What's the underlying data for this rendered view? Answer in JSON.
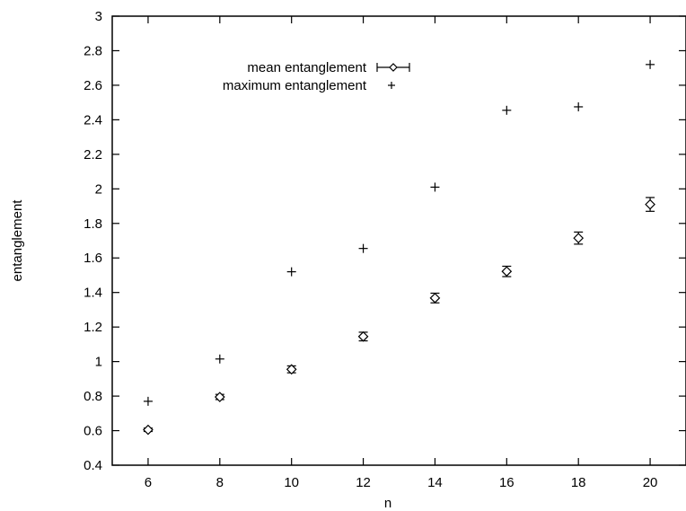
{
  "chart_data": {
    "type": "scatter",
    "xlabel": "n",
    "ylabel": "entanglement",
    "xlim": [
      5,
      21
    ],
    "ylim": [
      0.4,
      3.0
    ],
    "x_ticks": [
      6,
      8,
      10,
      12,
      14,
      16,
      18,
      20
    ],
    "y_ticks": [
      0.4,
      0.6,
      0.8,
      1.0,
      1.2,
      1.4,
      1.6,
      1.8,
      2.0,
      2.2,
      2.4,
      2.6,
      2.8,
      3.0
    ],
    "x_tick_labels": [
      "6",
      "8",
      "10",
      "12",
      "14",
      "16",
      "18",
      "20"
    ],
    "y_tick_labels": [
      "0.4",
      "0.6",
      "0.8",
      "1",
      "1.2",
      "1.4",
      "1.6",
      "1.8",
      "2",
      "2.2",
      "2.4",
      "2.6",
      "2.8",
      "3"
    ],
    "legend_position": "top-left",
    "grid": false,
    "series": [
      {
        "name": "mean entanglement",
        "marker": "diamond",
        "x": [
          6,
          8,
          10,
          12,
          14,
          16,
          18,
          20
        ],
        "y": [
          0.605,
          0.795,
          0.955,
          1.145,
          1.368,
          1.522,
          1.715,
          1.91
        ],
        "yerr": [
          0.01,
          0.015,
          0.02,
          0.025,
          0.028,
          0.03,
          0.035,
          0.04
        ]
      },
      {
        "name": "maximum entanglement",
        "marker": "plus",
        "x": [
          6,
          8,
          10,
          12,
          14,
          16,
          18,
          20
        ],
        "y": [
          0.77,
          1.015,
          1.52,
          1.655,
          2.01,
          2.455,
          2.475,
          2.72
        ]
      }
    ]
  }
}
